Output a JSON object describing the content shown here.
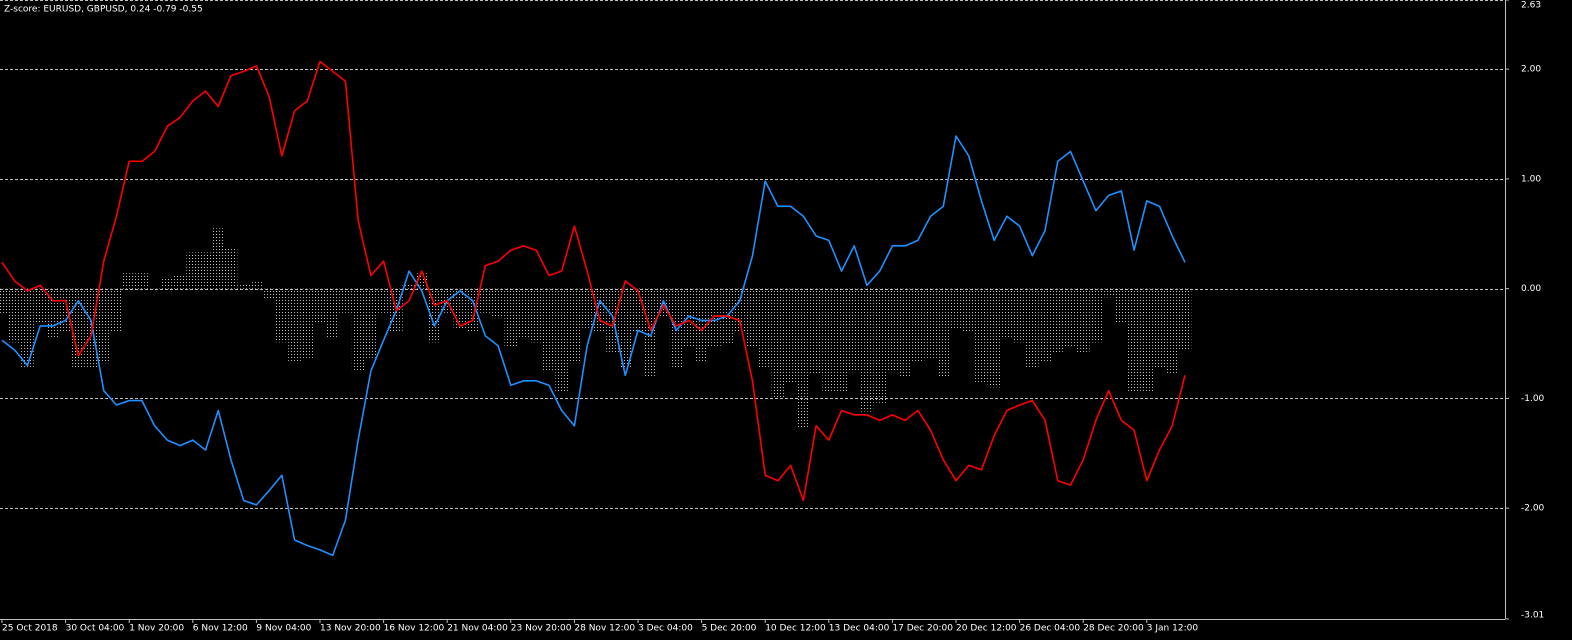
{
  "chart_data": {
    "type": "line",
    "title": "Z-score: EURUSD, GBPUSD,  0.24 -0.79 -0.55",
    "ylim": [
      -3.01,
      2.63
    ],
    "yticks": [
      2.63,
      {
        "value": 2,
        "label": "2.00"
      },
      {
        "value": 1,
        "label": "1.00"
      },
      {
        "value": 0,
        "label": "0.00"
      },
      {
        "value": -1,
        "label": "-1.00"
      },
      {
        "value": -2,
        "label": "-2.00"
      },
      -3.01
    ],
    "xlim": [
      0,
      93
    ],
    "xticks": [
      {
        "value": 0,
        "label": "25 Oct 2018"
      },
      {
        "value": 5,
        "label": "30 Oct 04:00"
      },
      {
        "value": 10,
        "label": "1 Nov 20:00"
      },
      {
        "value": 15,
        "label": "6 Nov 12:00"
      },
      {
        "value": 20,
        "label": "9 Nov 04:00"
      },
      {
        "value": 25,
        "label": "13 Nov 20:00"
      },
      {
        "value": 30,
        "label": "16 Nov 12:00"
      },
      {
        "value": 35,
        "label": "21 Nov 04:00"
      },
      {
        "value": 40,
        "label": "23 Nov 20:00"
      },
      {
        "value": 45,
        "label": "28 Nov 12:00"
      },
      {
        "value": 50,
        "label": "3 Dec 04:00"
      },
      {
        "value": 55,
        "label": "5 Dec 20:00"
      },
      {
        "value": 60,
        "label": "10 Dec 12:00"
      },
      {
        "value": 65,
        "label": "13 Dec 04:00"
      },
      {
        "value": 70,
        "label": "17 Dec 20:00"
      },
      {
        "value": 75,
        "label": "20 Dec 12:00"
      },
      {
        "value": 80,
        "label": "26 Dec 04:00"
      },
      {
        "value": 85,
        "label": "28 Dec 20:00"
      },
      {
        "value": 90,
        "label": "3 Jan 12:00"
      }
    ],
    "grid": true,
    "series": [
      {
        "type": "bar",
        "color": "#c0c0c0",
        "values": [
          -0.23,
          -0.49,
          -0.72,
          -0.31,
          -0.45,
          -0.4,
          -0.72,
          -0.72,
          -0.68,
          -0.4,
          0.14,
          0.14,
          0,
          0.1,
          0.13,
          0.33,
          0.33,
          0.55,
          0.38,
          0.05,
          0.06,
          -0.09,
          -0.49,
          -0.67,
          -0.63,
          -0.31,
          -0.45,
          -0.22,
          -0.76,
          -0.63,
          -0.22,
          -0.4,
          0.05,
          0.14,
          -0.49,
          -0.22,
          -0.36,
          -0.4,
          -0.22,
          -0.27,
          -0.53,
          -0.45,
          -0.49,
          -0.76,
          -0.95,
          -0.68,
          -0.36,
          -0.4,
          -0.59,
          -0.72,
          -0.4,
          -0.81,
          -0.26,
          -0.72,
          -0.54,
          -0.67,
          -0.54,
          -0.5,
          -0.4,
          -0.54,
          -0.72,
          -1.0,
          -0.86,
          -1.27,
          -0.77,
          -0.94,
          -0.95,
          -0.76,
          -1.12,
          -1.04,
          -0.76,
          -0.81,
          -0.67,
          -0.63,
          -0.81,
          -0.36,
          -0.4,
          -0.85,
          -0.9,
          -0.45,
          -0.49,
          -0.72,
          -0.67,
          -0.59,
          -0.54,
          -0.58,
          -0.49,
          -0.08,
          -0.31,
          -0.94,
          -0.95,
          -0.72,
          -0.77,
          -0.55
        ]
      },
      {
        "type": "line",
        "color": "#1e90ff",
        "values": [
          -0.47,
          -0.56,
          -0.7,
          -0.34,
          -0.34,
          -0.29,
          -0.11,
          -0.29,
          -0.93,
          -1.06,
          -1.02,
          -1.02,
          -1.25,
          -1.38,
          -1.43,
          -1.38,
          -1.47,
          -1.11,
          -1.56,
          -1.93,
          -1.97,
          -1.84,
          -1.7,
          -2.29,
          -2.34,
          -2.38,
          -2.43,
          -2.11,
          -1.38,
          -0.75,
          -0.47,
          -0.2,
          0.16,
          -0.02,
          -0.34,
          -0.11,
          -0.02,
          -0.11,
          -0.43,
          -0.52,
          -0.88,
          -0.84,
          -0.84,
          -0.88,
          -1.11,
          -1.25,
          -0.52,
          -0.11,
          -0.25,
          -0.79,
          -0.38,
          -0.43,
          -0.11,
          -0.38,
          -0.25,
          -0.29,
          -0.29,
          -0.25,
          -0.11,
          0.3,
          0.98,
          0.75,
          0.75,
          0.66,
          0.48,
          0.44,
          0.16,
          0.39,
          0.03,
          0.16,
          0.39,
          0.39,
          0.44,
          0.66,
          0.75,
          1.39,
          1.21,
          0.8,
          0.44,
          0.66,
          0.57,
          0.3,
          0.53,
          1.16,
          1.25,
          0.98,
          0.71,
          0.85,
          0.89,
          0.35,
          0.8,
          0.75,
          0.48,
          0.24
        ]
      },
      {
        "type": "line",
        "color": "#ff0000",
        "values": [
          0.24,
          0.07,
          -0.02,
          0.03,
          -0.11,
          -0.11,
          -0.61,
          -0.43,
          0.25,
          0.66,
          1.16,
          1.16,
          1.25,
          1.48,
          1.56,
          1.71,
          1.8,
          1.66,
          1.94,
          1.98,
          2.03,
          1.75,
          1.21,
          1.62,
          1.71,
          2.07,
          1.98,
          1.89,
          0.62,
          0.12,
          0.25,
          -0.2,
          -0.11,
          0.16,
          -0.15,
          -0.11,
          -0.34,
          -0.29,
          0.21,
          0.25,
          0.35,
          0.39,
          0.35,
          0.12,
          0.16,
          0.57,
          0.16,
          -0.29,
          -0.34,
          0.07,
          -0.02,
          -0.38,
          -0.15,
          -0.34,
          -0.29,
          -0.38,
          -0.25,
          -0.25,
          -0.29,
          -0.84,
          -1.7,
          -1.75,
          -1.61,
          -1.93,
          -1.25,
          -1.38,
          -1.11,
          -1.15,
          -1.15,
          -1.2,
          -1.15,
          -1.2,
          -1.11,
          -1.29,
          -1.56,
          -1.75,
          -1.61,
          -1.65,
          -1.34,
          -1.11,
          -1.06,
          -1.02,
          -1.2,
          -1.75,
          -1.79,
          -1.56,
          -1.2,
          -0.93,
          -1.2,
          -1.29,
          -1.75,
          -1.47,
          -1.25,
          -0.79
        ]
      }
    ]
  }
}
